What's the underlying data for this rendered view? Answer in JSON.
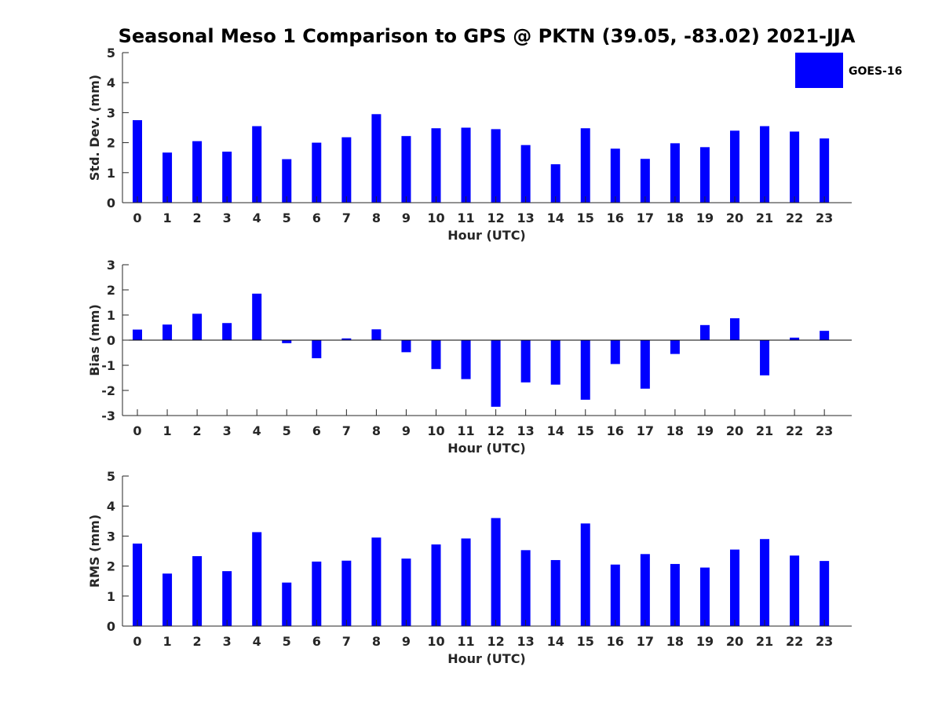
{
  "title": "Seasonal Meso 1 Comparison to GPS @ PKTN (39.05, -83.02) 2021-JJA",
  "legend": {
    "label": "GOES-16",
    "color": "#0000ff",
    "placement": "top-right"
  },
  "chart_data": [
    {
      "type": "bar",
      "xlabel": "Hour (UTC)",
      "ylabel": "Std. Dev. (mm)",
      "ylim": [
        0,
        5
      ],
      "yticks": [
        0,
        1,
        2,
        3,
        4,
        5
      ],
      "categories": [
        "0",
        "1",
        "2",
        "3",
        "4",
        "5",
        "6",
        "7",
        "8",
        "9",
        "10",
        "11",
        "12",
        "13",
        "14",
        "15",
        "16",
        "17",
        "18",
        "19",
        "20",
        "21",
        "22",
        "23"
      ],
      "series": [
        {
          "name": "GOES-16",
          "color": "#0000ff",
          "values": [
            2.75,
            1.67,
            2.05,
            1.7,
            2.55,
            1.45,
            2.0,
            2.18,
            2.95,
            2.22,
            2.48,
            2.5,
            2.45,
            1.92,
            1.28,
            2.48,
            1.8,
            1.46,
            1.98,
            1.85,
            2.4,
            2.55,
            2.37,
            2.14
          ]
        }
      ]
    },
    {
      "type": "bar",
      "xlabel": "Hour (UTC)",
      "ylabel": "Bias (mm)",
      "ylim": [
        -3,
        3
      ],
      "yticks": [
        -3,
        -2,
        -1,
        0,
        1,
        2,
        3
      ],
      "zero_line": true,
      "categories": [
        "0",
        "1",
        "2",
        "3",
        "4",
        "5",
        "6",
        "7",
        "8",
        "9",
        "10",
        "11",
        "12",
        "13",
        "14",
        "15",
        "16",
        "17",
        "18",
        "19",
        "20",
        "21",
        "22",
        "23"
      ],
      "series": [
        {
          "name": "GOES-16",
          "color": "#0000ff",
          "values": [
            0.42,
            0.62,
            1.05,
            0.68,
            1.85,
            -0.12,
            -0.72,
            0.07,
            0.43,
            -0.48,
            -1.15,
            -1.55,
            -2.65,
            -1.68,
            -1.77,
            -2.37,
            -0.95,
            -1.93,
            -0.55,
            0.6,
            0.87,
            -1.4,
            0.1,
            0.37
          ]
        }
      ]
    },
    {
      "type": "bar",
      "xlabel": "Hour (UTC)",
      "ylabel": "RMS (mm)",
      "ylim": [
        0,
        5
      ],
      "yticks": [
        0,
        1,
        2,
        3,
        4,
        5
      ],
      "categories": [
        "0",
        "1",
        "2",
        "3",
        "4",
        "5",
        "6",
        "7",
        "8",
        "9",
        "10",
        "11",
        "12",
        "13",
        "14",
        "15",
        "16",
        "17",
        "18",
        "19",
        "20",
        "21",
        "22",
        "23"
      ],
      "series": [
        {
          "name": "GOES-16",
          "color": "#0000ff",
          "values": [
            2.75,
            1.75,
            2.33,
            1.83,
            3.13,
            1.45,
            2.15,
            2.18,
            2.95,
            2.25,
            2.72,
            2.92,
            3.6,
            2.53,
            2.2,
            3.42,
            2.05,
            2.4,
            2.07,
            1.95,
            2.55,
            2.9,
            2.35,
            2.17
          ]
        }
      ]
    }
  ]
}
